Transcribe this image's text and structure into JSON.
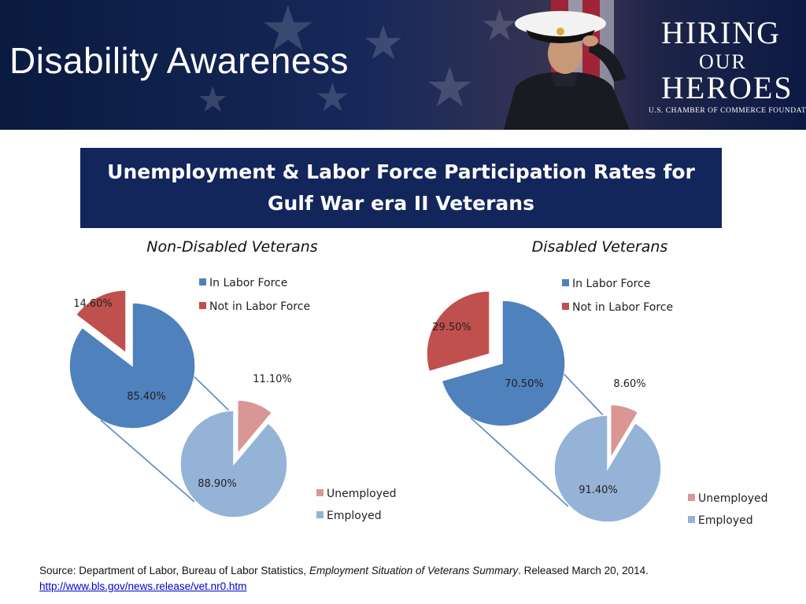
{
  "header": {
    "title": "Disability Awareness",
    "logo": {
      "line1": "HIRING",
      "line2": "OUR",
      "line3": "HEROES",
      "line4": "U.S. CHAMBER OF COMMERCE FOUNDATION"
    }
  },
  "colors": {
    "banner_navy": "#0d1a44",
    "title_box": "#13265c",
    "in_labor_force": "#4f81bd",
    "not_in_labor_force": "#c0504d",
    "unemployed": "#d99694",
    "employed": "#95b3d7",
    "connector": "#4f81bd",
    "link": "#0000cc"
  },
  "chart_title": {
    "line1": "Unemployment & Labor Force Participation Rates for",
    "line2": "Gulf War era II Veterans"
  },
  "chart_data": [
    {
      "type": "pie",
      "title": "Non-Disabled Veterans",
      "labor_force": {
        "legend": [
          "In Labor Force",
          "Not in Labor Force"
        ],
        "slices": [
          {
            "name": "In Labor Force",
            "label": "85.40%",
            "value": 85.4
          },
          {
            "name": "Not in Labor Force",
            "label": "14.60%",
            "value": 14.6
          }
        ]
      },
      "employment": {
        "legend": [
          "Unemployed",
          "Employed"
        ],
        "slices": [
          {
            "name": "Unemployed",
            "label": "11.10%",
            "value": 11.1
          },
          {
            "name": "Employed",
            "label": "88.90%",
            "value": 88.9
          }
        ]
      }
    },
    {
      "type": "pie",
      "title": "Disabled Veterans",
      "labor_force": {
        "legend": [
          "In Labor Force",
          "Not in Labor Force"
        ],
        "slices": [
          {
            "name": "In Labor Force",
            "label": "70.50%",
            "value": 70.5
          },
          {
            "name": "Not in Labor Force",
            "label": "29.50%",
            "value": 29.5
          }
        ]
      },
      "employment": {
        "legend": [
          "Unemployed",
          "Employed"
        ],
        "slices": [
          {
            "name": "Unemployed",
            "label": "8.60%",
            "value": 8.6
          },
          {
            "name": "Employed",
            "label": "91.40%",
            "value": 91.4
          }
        ]
      }
    }
  ],
  "source": {
    "prefix": "Source: Department of Labor, Bureau of Labor Statistics, ",
    "publication": "Employment Situation of Veterans Summary",
    "suffix": ".  Released March 20, 2014.",
    "link": "http://www.bls.gov/news.release/vet.nr0.htm"
  }
}
